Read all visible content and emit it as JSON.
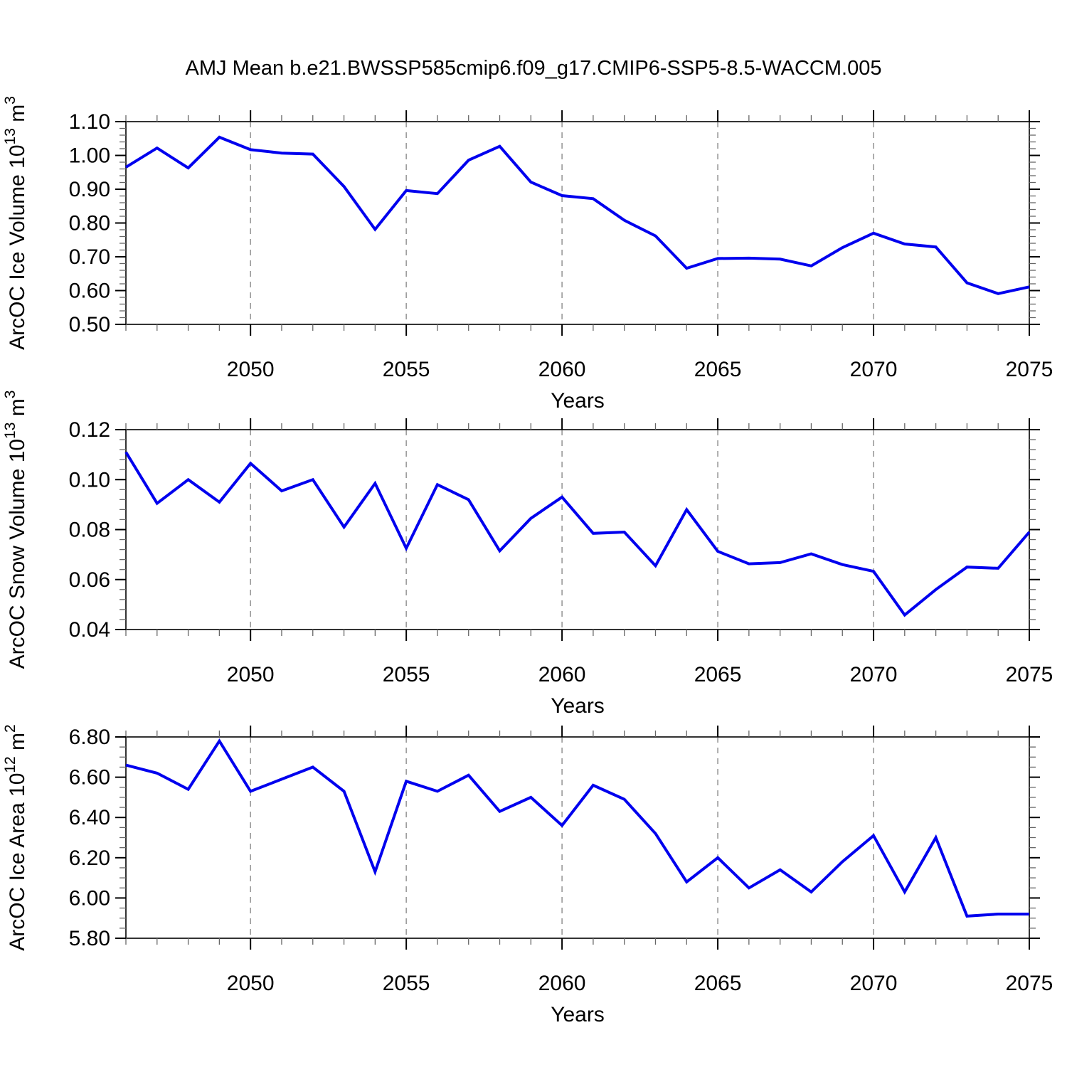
{
  "title": "AMJ Mean b.e21.BWSSP585cmip6.f09_g17.CMIP6-SSP5-8.5-WACCM.005",
  "colors": {
    "line": "#0000EE",
    "frame": "#333333",
    "major_tick": "#000000",
    "minor_tick": "#666666",
    "grid": "#999999",
    "text": "#000000"
  },
  "chart_data": [
    {
      "type": "line",
      "panel": "ice-volume",
      "ylabel": "ArcOC Ice Volume 10^13 m^3",
      "ylabel_parts": [
        {
          "t": "ArcOC Ice Volume 10",
          "sup": false
        },
        {
          "t": "13",
          "sup": true
        },
        {
          "t": " m",
          "sup": false
        },
        {
          "t": "3",
          "sup": true
        }
      ],
      "xlabel": "Years",
      "xlim": [
        2046,
        2075
      ],
      "ylim": [
        0.5,
        1.1
      ],
      "xticks_major": [
        2050,
        2055,
        2060,
        2065,
        2070,
        2075
      ],
      "xminor_step": 1,
      "grid_years": [
        2050,
        2055,
        2060,
        2065,
        2070
      ],
      "yticks": {
        "values": [
          1.1,
          1.0,
          0.9,
          0.8,
          0.7,
          0.6,
          0.5
        ],
        "labels": [
          "1.10",
          "1.00",
          "0.90",
          "0.80",
          "0.70",
          "0.60",
          "0.50"
        ]
      },
      "yminor_step": 0.02,
      "x": [
        2046,
        2047,
        2048,
        2049,
        2050,
        2051,
        2052,
        2053,
        2054,
        2055,
        2056,
        2057,
        2058,
        2059,
        2060,
        2061,
        2062,
        2063,
        2064,
        2065,
        2066,
        2067,
        2068,
        2069,
        2070,
        2071,
        2072,
        2073,
        2074,
        2075
      ],
      "values": [
        0.965,
        1.022,
        0.963,
        1.054,
        1.017,
        1.007,
        1.004,
        0.908,
        0.781,
        0.896,
        0.887,
        0.986,
        1.027,
        0.921,
        0.881,
        0.872,
        0.808,
        0.762,
        0.666,
        0.695,
        0.696,
        0.693,
        0.673,
        0.727,
        0.77,
        0.738,
        0.729,
        0.623,
        0.591,
        0.611
      ]
    },
    {
      "type": "line",
      "panel": "snow-volume",
      "ylabel": "ArcOC Snow Volume 10^13 m^3",
      "ylabel_parts": [
        {
          "t": "ArcOC Snow Volume 10",
          "sup": false
        },
        {
          "t": "13",
          "sup": true
        },
        {
          "t": " m",
          "sup": false
        },
        {
          "t": "3",
          "sup": true
        }
      ],
      "xlabel": "Years",
      "xlim": [
        2046,
        2075
      ],
      "ylim": [
        0.04,
        0.12
      ],
      "xticks_major": [
        2050,
        2055,
        2060,
        2065,
        2070,
        2075
      ],
      "xminor_step": 1,
      "grid_years": [
        2050,
        2055,
        2060,
        2065,
        2070
      ],
      "yticks": {
        "values": [
          0.12,
          0.1,
          0.08,
          0.06,
          0.04
        ],
        "labels": [
          "0.12",
          "0.10",
          "0.08",
          "0.06",
          "0.04"
        ]
      },
      "yminor_step": 0.004,
      "x": [
        2046,
        2047,
        2048,
        2049,
        2050,
        2051,
        2052,
        2053,
        2054,
        2055,
        2056,
        2057,
        2058,
        2059,
        2060,
        2061,
        2062,
        2063,
        2064,
        2065,
        2066,
        2067,
        2068,
        2069,
        2070,
        2071,
        2072,
        2073,
        2074,
        2075
      ],
      "values": [
        0.111,
        0.0905,
        0.1,
        0.091,
        0.1065,
        0.0955,
        0.1,
        0.081,
        0.0985,
        0.0725,
        0.098,
        0.092,
        0.0715,
        0.0845,
        0.093,
        0.0785,
        0.079,
        0.0655,
        0.088,
        0.0713,
        0.0663,
        0.0668,
        0.0703,
        0.066,
        0.0633,
        0.0458,
        0.056,
        0.065,
        0.0645,
        0.079
      ]
    },
    {
      "type": "line",
      "panel": "ice-area",
      "ylabel": "ArcOC Ice Area 10^12 m^2",
      "ylabel_parts": [
        {
          "t": "ArcOC Ice Area 10",
          "sup": false
        },
        {
          "t": "12",
          "sup": true
        },
        {
          "t": " m",
          "sup": false
        },
        {
          "t": "2",
          "sup": true
        }
      ],
      "xlabel": "Years",
      "xlim": [
        2046,
        2075
      ],
      "ylim": [
        5.8,
        6.8
      ],
      "xticks_major": [
        2050,
        2055,
        2060,
        2065,
        2070,
        2075
      ],
      "xminor_step": 1,
      "grid_years": [
        2050,
        2055,
        2060,
        2065,
        2070
      ],
      "yticks": {
        "values": [
          6.8,
          6.6,
          6.4,
          6.2,
          6.0,
          5.8
        ],
        "labels": [
          "6.80",
          "6.60",
          "6.40",
          "6.20",
          "6.00",
          "5.80"
        ]
      },
      "yminor_step": 0.05,
      "x": [
        2046,
        2047,
        2048,
        2049,
        2050,
        2051,
        2052,
        2053,
        2054,
        2055,
        2056,
        2057,
        2058,
        2059,
        2060,
        2061,
        2062,
        2063,
        2064,
        2065,
        2066,
        2067,
        2068,
        2069,
        2070,
        2071,
        2072,
        2073,
        2074,
        2075
      ],
      "values": [
        6.66,
        6.62,
        6.54,
        6.78,
        6.53,
        6.59,
        6.65,
        6.53,
        6.13,
        6.58,
        6.53,
        6.61,
        6.43,
        6.5,
        6.36,
        6.56,
        6.49,
        6.32,
        6.08,
        6.2,
        6.05,
        6.14,
        6.03,
        6.18,
        6.31,
        6.03,
        6.3,
        5.91,
        5.92,
        5.92
      ]
    }
  ]
}
